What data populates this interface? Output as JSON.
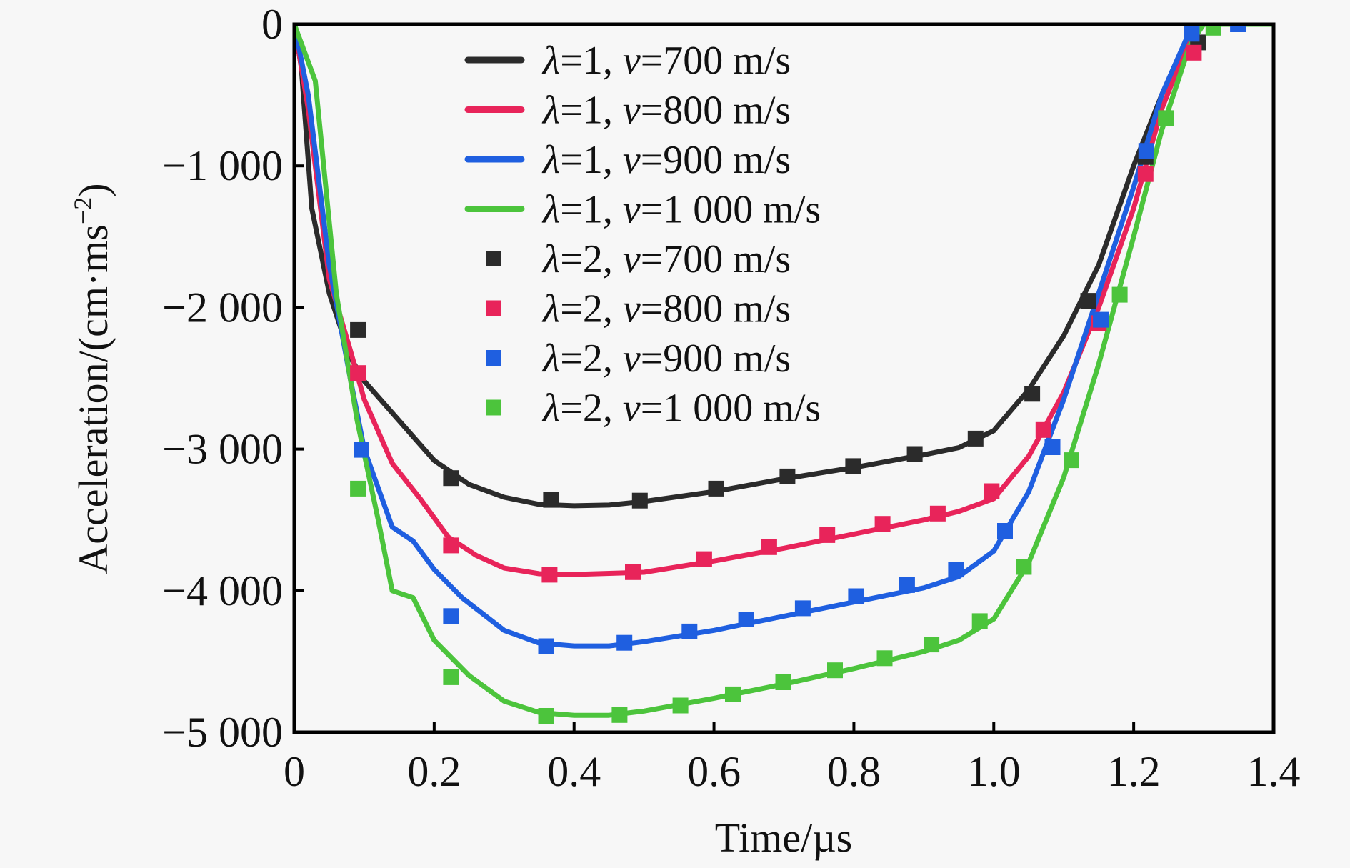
{
  "chart_data": {
    "type": "line",
    "title": "",
    "xlabel": "Time/µs",
    "ylabel_main": "Acceleration/(cm·ms",
    "ylabel_sup": "−2",
    "ylabel_close": ")",
    "xlim": [
      0,
      1.4
    ],
    "ylim": [
      -5000,
      0
    ],
    "xticks": [
      0,
      0.2,
      0.4,
      0.6,
      0.8,
      1.0,
      1.2,
      1.4
    ],
    "xtick_labels": [
      "0",
      "0.2",
      "0.4",
      "0.6",
      "0.8",
      "1.0",
      "1.2",
      "1.4"
    ],
    "yticks": [
      0,
      -1000,
      -2000,
      -3000,
      -4000,
      -5000
    ],
    "ytick_labels": [
      "0",
      "−1 000",
      "−2 000",
      "−3 000",
      "−4 000",
      "−5 000"
    ],
    "grid": false,
    "legend_position": "top-center",
    "series": [
      {
        "name": "λ=1, v=700 m/s",
        "lambda": "1",
        "v": "700 m/s",
        "style": "line",
        "color": "#2b2b2b",
        "x": [
          0,
          0.01,
          0.025,
          0.05,
          0.08,
          0.1,
          0.15,
          0.2,
          0.25,
          0.3,
          0.35,
          0.4,
          0.45,
          0.5,
          0.6,
          0.7,
          0.8,
          0.9,
          0.95,
          1.0,
          1.05,
          1.1,
          1.15,
          1.2,
          1.24,
          1.28,
          1.3,
          1.4
        ],
        "y": [
          0,
          -300,
          -1300,
          -1900,
          -2350,
          -2520,
          -2800,
          -3080,
          -3250,
          -3340,
          -3390,
          -3400,
          -3395,
          -3370,
          -3300,
          -3210,
          -3130,
          -3040,
          -2990,
          -2870,
          -2580,
          -2200,
          -1700,
          -1000,
          -500,
          -60,
          0,
          0
        ]
      },
      {
        "name": "λ=1, v=800 m/s",
        "lambda": "1",
        "v": "800 m/s",
        "style": "line",
        "color": "#e8245a",
        "x": [
          0,
          0.02,
          0.05,
          0.08,
          0.1,
          0.14,
          0.18,
          0.22,
          0.26,
          0.3,
          0.35,
          0.4,
          0.5,
          0.6,
          0.7,
          0.8,
          0.9,
          0.95,
          1.0,
          1.05,
          1.1,
          1.15,
          1.2,
          1.24,
          1.28,
          1.3,
          1.4
        ],
        "y": [
          0,
          -600,
          -1800,
          -2300,
          -2650,
          -3100,
          -3350,
          -3620,
          -3750,
          -3840,
          -3880,
          -3885,
          -3870,
          -3790,
          -3700,
          -3600,
          -3500,
          -3440,
          -3350,
          -3050,
          -2600,
          -2000,
          -1300,
          -600,
          -100,
          0,
          0
        ]
      },
      {
        "name": "λ=1, v=900 m/s",
        "lambda": "1",
        "v": "900 m/s",
        "style": "line",
        "color": "#1f5fe0",
        "x": [
          0,
          0.02,
          0.05,
          0.08,
          0.1,
          0.14,
          0.17,
          0.2,
          0.24,
          0.3,
          0.35,
          0.4,
          0.45,
          0.5,
          0.6,
          0.7,
          0.8,
          0.9,
          0.95,
          1.0,
          1.05,
          1.1,
          1.15,
          1.2,
          1.24,
          1.28,
          1.3,
          1.4
        ],
        "y": [
          0,
          -500,
          -1700,
          -2500,
          -3000,
          -3550,
          -3650,
          -3850,
          -4050,
          -4280,
          -4370,
          -4390,
          -4390,
          -4360,
          -4280,
          -4180,
          -4080,
          -3980,
          -3900,
          -3720,
          -3300,
          -2650,
          -1900,
          -1150,
          -500,
          -50,
          0,
          0
        ]
      },
      {
        "name": "λ=1, v=1 000 m/s",
        "lambda": "1",
        "v": "1 000 m/s",
        "style": "line",
        "color": "#4cc43c",
        "x": [
          0,
          0.03,
          0.06,
          0.09,
          0.12,
          0.14,
          0.17,
          0.2,
          0.25,
          0.3,
          0.35,
          0.4,
          0.45,
          0.5,
          0.6,
          0.7,
          0.8,
          0.9,
          0.95,
          1.0,
          1.05,
          1.1,
          1.15,
          1.2,
          1.24,
          1.28,
          1.3,
          1.4
        ],
        "y": [
          0,
          -400,
          -1900,
          -2800,
          -3500,
          -4000,
          -4050,
          -4350,
          -4600,
          -4780,
          -4860,
          -4880,
          -4880,
          -4850,
          -4760,
          -4660,
          -4550,
          -4430,
          -4350,
          -4200,
          -3800,
          -3200,
          -2400,
          -1500,
          -750,
          -150,
          0,
          0
        ]
      },
      {
        "name": "λ=2, v=700 m/s",
        "lambda": "2",
        "v": "700 m/s",
        "style": "marker",
        "color": "#2b2b2b",
        "x": [
          0.091,
          0.224,
          0.367,
          0.494,
          0.603,
          0.705,
          0.799,
          0.887,
          0.974,
          1.055,
          1.135,
          1.217,
          1.292
        ],
        "y": [
          -2159,
          -3205,
          -3358,
          -3364,
          -3279,
          -3193,
          -3120,
          -3035,
          -2926,
          -2610,
          -1953,
          -937,
          -128
        ]
      },
      {
        "name": "λ=2, v=800 m/s",
        "lambda": "2",
        "v": "800 m/s",
        "style": "marker",
        "color": "#e8245a",
        "x": [
          0.091,
          0.224,
          0.365,
          0.484,
          0.586,
          0.679,
          0.762,
          0.841,
          0.92,
          0.997,
          1.071,
          1.15,
          1.217,
          1.286
        ],
        "y": [
          -2463,
          -3680,
          -3887,
          -3869,
          -3777,
          -3692,
          -3607,
          -3528,
          -3455,
          -3297,
          -2865,
          -2111,
          -1058,
          -201
        ]
      },
      {
        "name": "λ=2, v=900 m/s",
        "lambda": "2",
        "v": "900 m/s",
        "style": "marker",
        "color": "#1f5fe0",
        "x": [
          0.096,
          0.224,
          0.36,
          0.472,
          0.565,
          0.646,
          0.727,
          0.803,
          0.876,
          0.946,
          1.016,
          1.084,
          1.153,
          1.218,
          1.283,
          1.349
        ],
        "y": [
          -3005,
          -4179,
          -4392,
          -4368,
          -4288,
          -4203,
          -4124,
          -4039,
          -3960,
          -3850,
          -3577,
          -2987,
          -2087,
          -894,
          -67,
          0
        ]
      },
      {
        "name": "λ=2, v=1 000 m/s",
        "lambda": "2",
        "v": "1 000 m/s",
        "style": "marker",
        "color": "#4cc43c",
        "x": [
          0.091,
          0.224,
          0.36,
          0.465,
          0.552,
          0.627,
          0.699,
          0.773,
          0.844,
          0.911,
          0.98,
          1.043,
          1.111,
          1.18,
          1.246,
          1.314
        ],
        "y": [
          -3279,
          -4611,
          -4884,
          -4878,
          -4811,
          -4732,
          -4647,
          -4562,
          -4477,
          -4380,
          -4215,
          -3832,
          -3078,
          -1910,
          -663,
          -24
        ]
      }
    ]
  }
}
